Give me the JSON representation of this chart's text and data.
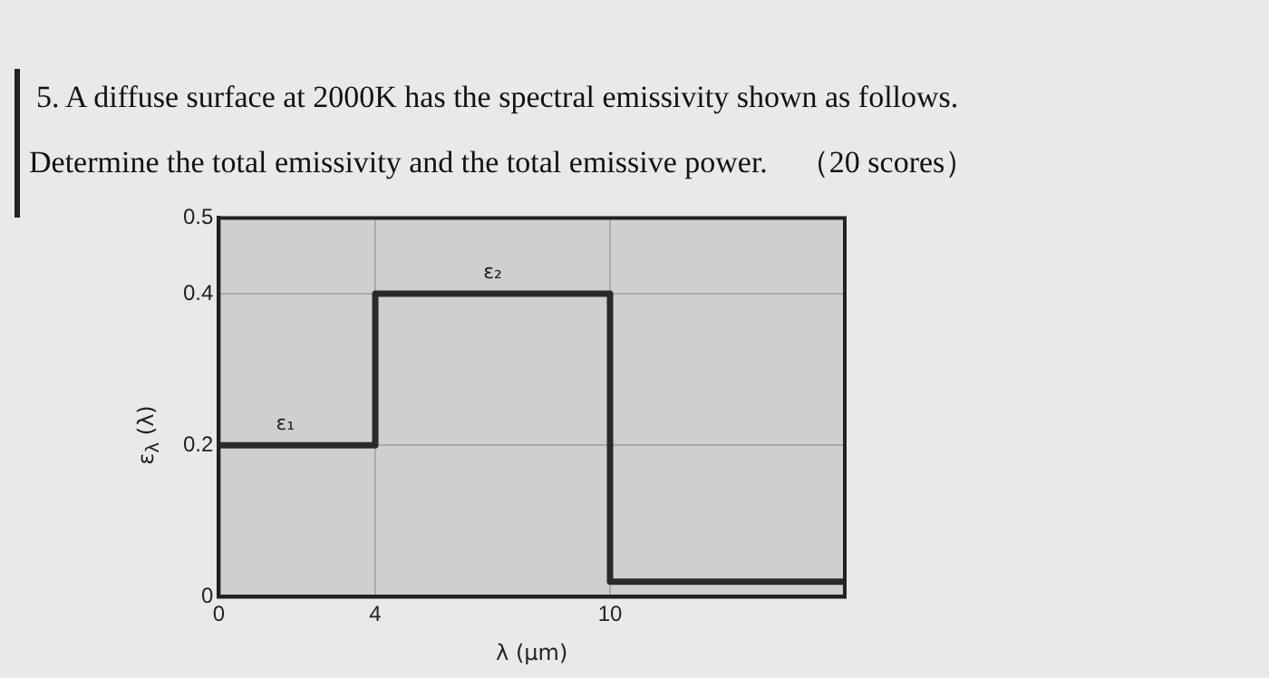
{
  "chart_data": {
    "type": "step",
    "title": "5. A diffuse surface at 2000K has the spectral emissivity shown as follows.",
    "subtitle": "Determine the total emissivity and the total emissive power.　（20 scores）",
    "xlabel": "λ (μm)",
    "ylabel": "ε$_{λ}$ (λ)",
    "x": [
      0,
      4,
      10,
      16
    ],
    "series": [
      {
        "color": "#2a2a2a",
        "values": [
          0.2,
          0.4,
          0.02,
          0.02
        ]
      }
    ],
    "xlim": [
      0,
      16
    ],
    "xticks": [
      0,
      4,
      10
    ],
    "ylim": [
      0,
      0.5
    ],
    "yticks": [
      0,
      0.2,
      0.4,
      0.5
    ],
    "grid": true,
    "legend": false,
    "annotations": [
      {
        "text": "ε₁",
        "x": 1.7,
        "y": 0.2
      },
      {
        "text": "ε₂",
        "x": 7,
        "y": 0.4
      }
    ]
  }
}
